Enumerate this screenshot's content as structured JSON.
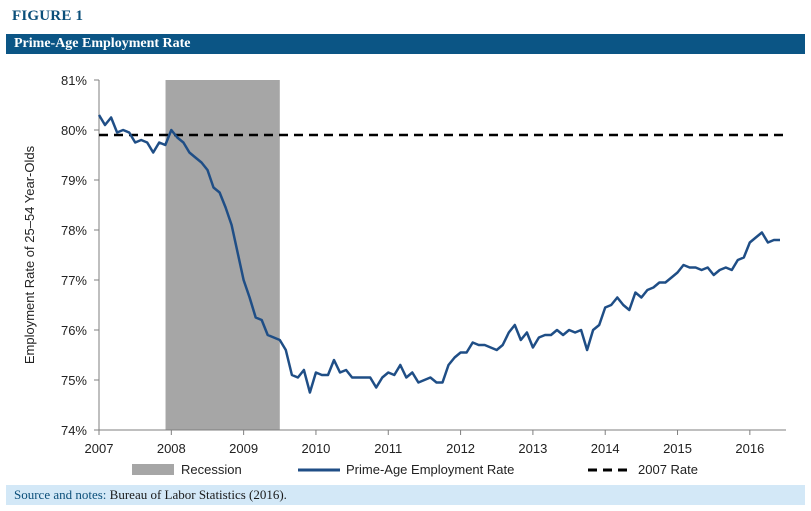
{
  "figure_label": "FIGURE 1",
  "title": "Prime-Age Employment Rate",
  "footer": {
    "source_label": "Source and notes:",
    "source_text": " Bureau of Labor Statistics (2016)."
  },
  "colors": {
    "accent": "#0b5585",
    "series": "#1f4e86",
    "recession": "#a6a6a6",
    "reference": "#000000",
    "footer_bg": "#d3e8f7"
  },
  "chart_data": {
    "type": "line",
    "title": "Prime-Age Employment Rate",
    "ylabel": "Employment Rate of 25–54 Year-Olds",
    "xlabel": "",
    "xlim": [
      2007.0,
      2016.5
    ],
    "ylim": [
      74,
      81
    ],
    "y_ticks": [
      "74%",
      "75%",
      "76%",
      "77%",
      "78%",
      "79%",
      "80%",
      "81%"
    ],
    "x_ticks": [
      "2007",
      "2008",
      "2009",
      "2010",
      "2011",
      "2012",
      "2013",
      "2014",
      "2015",
      "2016"
    ],
    "grid": false,
    "legend_position": "bottom",
    "recession": {
      "name": "Recession",
      "start": 2007.92,
      "end": 2009.5
    },
    "reference_line": {
      "name": "2007 Rate",
      "value": 79.9
    },
    "series": [
      {
        "name": "Prime-Age Employment Rate",
        "x": [
          2007.0,
          2007.083,
          2007.167,
          2007.25,
          2007.333,
          2007.417,
          2007.5,
          2007.583,
          2007.667,
          2007.75,
          2007.833,
          2007.917,
          2008.0,
          2008.083,
          2008.167,
          2008.25,
          2008.333,
          2008.417,
          2008.5,
          2008.583,
          2008.667,
          2008.75,
          2008.833,
          2008.917,
          2009.0,
          2009.083,
          2009.167,
          2009.25,
          2009.333,
          2009.417,
          2009.5,
          2009.583,
          2009.667,
          2009.75,
          2009.833,
          2009.917,
          2010.0,
          2010.083,
          2010.167,
          2010.25,
          2010.333,
          2010.417,
          2010.5,
          2010.583,
          2010.667,
          2010.75,
          2010.833,
          2010.917,
          2011.0,
          2011.083,
          2011.167,
          2011.25,
          2011.333,
          2011.417,
          2011.5,
          2011.583,
          2011.667,
          2011.75,
          2011.833,
          2011.917,
          2012.0,
          2012.083,
          2012.167,
          2012.25,
          2012.333,
          2012.417,
          2012.5,
          2012.583,
          2012.667,
          2012.75,
          2012.833,
          2012.917,
          2013.0,
          2013.083,
          2013.167,
          2013.25,
          2013.333,
          2013.417,
          2013.5,
          2013.583,
          2013.667,
          2013.75,
          2013.833,
          2013.917,
          2014.0,
          2014.083,
          2014.167,
          2014.25,
          2014.333,
          2014.417,
          2014.5,
          2014.583,
          2014.667,
          2014.75,
          2014.833,
          2014.917,
          2015.0,
          2015.083,
          2015.167,
          2015.25,
          2015.333,
          2015.417,
          2015.5,
          2015.583,
          2015.667,
          2015.75,
          2015.833,
          2015.917,
          2016.0,
          2016.083,
          2016.167,
          2016.25,
          2016.333,
          2016.417
        ],
        "y": [
          80.3,
          80.1,
          80.25,
          79.95,
          80.0,
          79.95,
          79.75,
          79.8,
          79.75,
          79.55,
          79.75,
          79.7,
          80.0,
          79.85,
          79.75,
          79.55,
          79.45,
          79.35,
          79.2,
          78.85,
          78.75,
          78.45,
          78.1,
          77.55,
          77.0,
          76.65,
          76.25,
          76.2,
          75.9,
          75.85,
          75.8,
          75.6,
          75.1,
          75.05,
          75.2,
          74.75,
          75.15,
          75.1,
          75.1,
          75.4,
          75.15,
          75.2,
          75.05,
          75.05,
          75.05,
          75.05,
          74.85,
          75.05,
          75.15,
          75.1,
          75.3,
          75.05,
          75.15,
          74.95,
          75.0,
          75.05,
          74.95,
          74.95,
          75.3,
          75.45,
          75.55,
          75.55,
          75.75,
          75.7,
          75.7,
          75.65,
          75.6,
          75.7,
          75.95,
          76.1,
          75.8,
          75.95,
          75.65,
          75.85,
          75.9,
          75.9,
          76.0,
          75.9,
          76.0,
          75.95,
          76.0,
          75.6,
          76.0,
          76.1,
          76.45,
          76.5,
          76.65,
          76.5,
          76.4,
          76.75,
          76.65,
          76.8,
          76.85,
          76.95,
          76.95,
          77.05,
          77.15,
          77.3,
          77.25,
          77.25,
          77.2,
          77.25,
          77.1,
          77.2,
          77.25,
          77.2,
          77.4,
          77.45,
          77.75,
          77.85,
          77.95,
          77.75,
          77.8,
          77.8
        ]
      }
    ]
  }
}
